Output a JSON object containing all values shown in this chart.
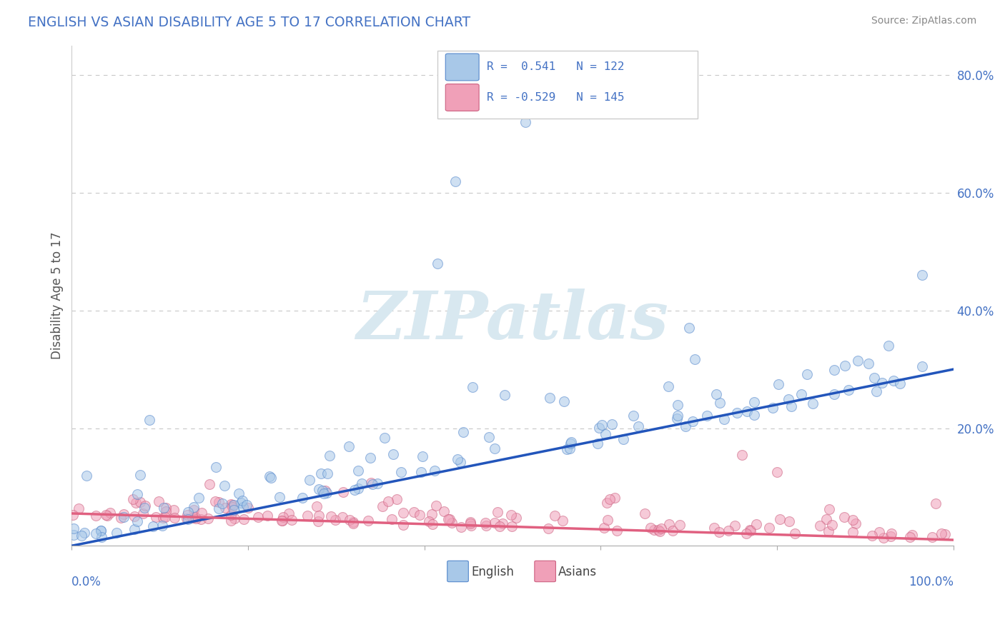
{
  "title": "ENGLISH VS ASIAN DISABILITY AGE 5 TO 17 CORRELATION CHART",
  "source": "Source: ZipAtlas.com",
  "ylabel": "Disability Age 5 to 17",
  "english_color": "#a8c8e8",
  "english_edge_color": "#5588cc",
  "asian_color": "#f0a0b8",
  "asian_edge_color": "#cc6080",
  "english_line_color": "#2255bb",
  "asian_line_color": "#e06080",
  "title_color": "#4472c4",
  "source_color": "#888888",
  "ylabel_color": "#555555",
  "background_color": "#ffffff",
  "grid_color": "#c8c8c8",
  "ytick_label_color": "#4472c4",
  "xlim": [
    0.0,
    1.0
  ],
  "ylim": [
    0.0,
    0.85
  ],
  "ytick_positions": [
    0.0,
    0.2,
    0.4,
    0.6,
    0.8
  ],
  "ytick_labels": [
    "",
    "20.0%",
    "40.0%",
    "60.0%",
    "80.0%"
  ],
  "english_line_x": [
    0.0,
    1.0
  ],
  "english_line_y": [
    0.0,
    0.3
  ],
  "asian_line_x": [
    0.0,
    1.0
  ],
  "asian_line_y": [
    0.055,
    0.01
  ],
  "watermark": "ZIPatlas",
  "legend_r_english": "R =  0.541",
  "legend_n_english": "N = 122",
  "legend_r_asian": "R = -0.529",
  "legend_n_asian": "N = 145",
  "n_english": 122,
  "n_asian": 145,
  "random_seed": 99,
  "marker_size": 100,
  "marker_alpha": 0.55,
  "marker_linewidth": 0.8
}
